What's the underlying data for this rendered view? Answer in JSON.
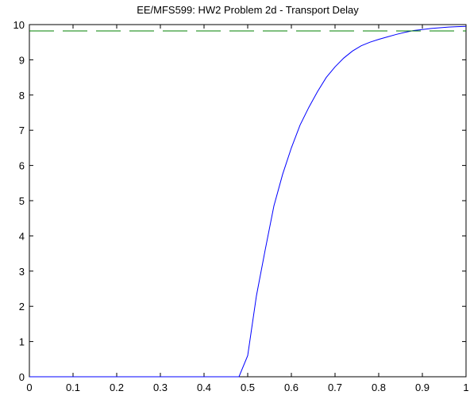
{
  "chart_data": {
    "type": "line",
    "title": "EE/MFS599: HW2 Problem 2d - Transport Delay",
    "xlabel": "",
    "ylabel": "",
    "xlim": [
      0,
      1
    ],
    "ylim": [
      0,
      10
    ],
    "x_ticks": [
      "0",
      "0.1",
      "0.2",
      "0.3",
      "0.4",
      "0.5",
      "0.6",
      "0.7",
      "0.8",
      "0.9",
      "1"
    ],
    "y_ticks": [
      "0",
      "1",
      "2",
      "3",
      "4",
      "5",
      "6",
      "7",
      "8",
      "9",
      "10"
    ],
    "grid": false,
    "series": [
      {
        "color": "#0000ff",
        "style": "solid",
        "x": [
          0,
          0.1,
          0.2,
          0.3,
          0.4,
          0.48,
          0.5,
          0.52,
          0.54,
          0.56,
          0.58,
          0.6,
          0.62,
          0.64,
          0.66,
          0.68,
          0.7,
          0.72,
          0.74,
          0.76,
          0.78,
          0.8,
          0.82,
          0.84,
          0.86,
          0.88,
          0.9,
          0.92,
          0.94,
          0.96,
          0.98,
          1.0
        ],
        "y": [
          0,
          0,
          0,
          0,
          0,
          0,
          0.6,
          2.3,
          3.6,
          4.85,
          5.75,
          6.5,
          7.15,
          7.65,
          8.1,
          8.5,
          8.8,
          9.05,
          9.25,
          9.4,
          9.5,
          9.58,
          9.65,
          9.72,
          9.78,
          9.83,
          9.86,
          9.89,
          9.91,
          9.93,
          9.94,
          9.95
        ]
      },
      {
        "color": "#008000",
        "style": "dashed",
        "x": [
          0,
          1
        ],
        "y": [
          9.82,
          9.82
        ]
      }
    ]
  }
}
